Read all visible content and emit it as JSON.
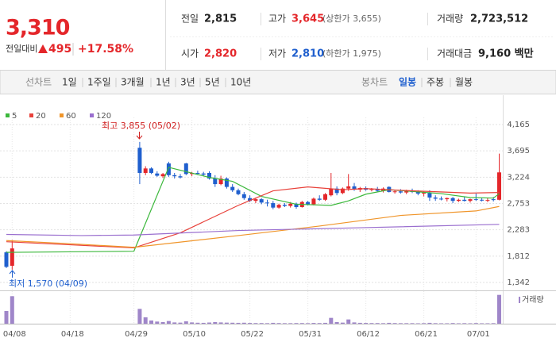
{
  "header": {
    "price": "3,310",
    "change_label": "전일대비",
    "change": "495",
    "change_pct": "+17.58%",
    "cells": [
      {
        "label": "전일",
        "value": "2,815"
      },
      {
        "label": "고가",
        "value": "3,645",
        "sub": "(상한가 3,655)"
      },
      {
        "label": "거래량",
        "value": "2,723,512"
      },
      {
        "label": "시가",
        "value": "2,820"
      },
      {
        "label": "저가",
        "value": "2,810",
        "sub": "(하한가 1,975)"
      },
      {
        "label": "거래대금",
        "value": "9,160 백만"
      }
    ]
  },
  "tabs": {
    "line_title": "선차트",
    "line": [
      "1일",
      "1주일",
      "3개월",
      "1년",
      "3년",
      "5년",
      "10년"
    ],
    "candle_title": "봉차트",
    "candle": [
      "일봉",
      "주봉",
      "월봉"
    ]
  },
  "chart_data": {
    "type": "candlestick",
    "up_color": "#e4262a",
    "down_color": "#1f5fce",
    "volume_color": "#9f86c9",
    "volume_label": "거래량",
    "volume_ylim": [
      0,
      3000000
    ],
    "ylim": [
      1342,
      4165
    ],
    "yticks": [
      {
        "value": 4165,
        "label": "4,165"
      },
      {
        "value": 3695,
        "label": "3,695"
      },
      {
        "value": 3224,
        "label": "3,224"
      },
      {
        "value": 2753,
        "label": "2,753"
      },
      {
        "value": 2283,
        "label": "2,283"
      },
      {
        "value": 1812,
        "label": "1,812"
      },
      {
        "value": 1342,
        "label": "1,342"
      }
    ],
    "categories": [
      null,
      "04/08",
      null,
      null,
      null,
      null,
      null,
      null,
      null,
      null,
      null,
      "04/18",
      null,
      null,
      null,
      null,
      null,
      null,
      null,
      null,
      null,
      null,
      "04/29",
      null,
      null,
      null,
      null,
      null,
      null,
      null,
      null,
      null,
      "05/10",
      null,
      null,
      null,
      null,
      null,
      null,
      null,
      null,
      null,
      "05/22",
      null,
      null,
      null,
      null,
      null,
      null,
      null,
      null,
      null,
      "05/31",
      null,
      null,
      null,
      null,
      null,
      null,
      null,
      null,
      null,
      "06/12",
      null,
      null,
      null,
      null,
      null,
      null,
      null,
      null,
      null,
      "06/21",
      null,
      null,
      null,
      null,
      null,
      null,
      null,
      null,
      "07/01",
      null,
      null,
      null,
      null
    ],
    "open": [
      1880,
      1640,
      null,
      null,
      null,
      null,
      null,
      null,
      null,
      null,
      null,
      null,
      null,
      null,
      null,
      null,
      null,
      null,
      null,
      null,
      null,
      null,
      null,
      3750,
      3300,
      3380,
      3290,
      3240,
      3470,
      3260,
      3240,
      3470,
      3280,
      3300,
      3290,
      3300,
      3200,
      3100,
      3200,
      3050,
      2990,
      2920,
      2850,
      2800,
      2830,
      2770,
      2760,
      2680,
      2730,
      2710,
      2750,
      2690,
      2780,
      2740,
      2840,
      2820,
      2900,
      3020,
      2940,
      3020,
      3060,
      3000,
      3030,
      3000,
      3010,
      2980,
      3050,
      2960,
      2970,
      2950,
      2980,
      2960,
      2930,
      2950,
      2860,
      2840,
      2830,
      2850,
      2800,
      2820,
      2800,
      2830,
      2820,
      2810,
      2830,
      2820
    ],
    "high": [
      1900,
      2100,
      null,
      null,
      null,
      null,
      null,
      null,
      null,
      null,
      null,
      null,
      null,
      null,
      null,
      null,
      null,
      null,
      null,
      null,
      null,
      null,
      null,
      3855,
      3420,
      3400,
      3330,
      3300,
      3500,
      3300,
      3280,
      3480,
      3320,
      3340,
      3320,
      3330,
      3260,
      3250,
      3220,
      3100,
      3020,
      2960,
      2900,
      2860,
      2850,
      2820,
      2800,
      2750,
      2760,
      2780,
      2770,
      2800,
      2800,
      2860,
      2900,
      2940,
      3300,
      3060,
      3040,
      3280,
      3120,
      3050,
      3060,
      3030,
      3050,
      3040,
      3060,
      3000,
      3010,
      3000,
      3020,
      2990,
      2980,
      2990,
      2900,
      2880,
      2860,
      2870,
      2840,
      2880,
      2840,
      2930,
      2850,
      2850,
      2870,
      3645
    ],
    "low": [
      1600,
      1570,
      null,
      null,
      null,
      null,
      null,
      null,
      null,
      null,
      null,
      null,
      null,
      null,
      null,
      null,
      null,
      null,
      null,
      null,
      null,
      null,
      null,
      3100,
      3260,
      3280,
      3230,
      3210,
      3230,
      3200,
      3200,
      3260,
      3240,
      3270,
      3250,
      3180,
      3050,
      3080,
      3020,
      2960,
      2900,
      2820,
      2780,
      2760,
      2740,
      2700,
      2650,
      2660,
      2690,
      2680,
      2660,
      2680,
      2720,
      2720,
      2800,
      2800,
      2880,
      2900,
      2920,
      2980,
      2980,
      2960,
      2980,
      2970,
      2960,
      2950,
      2950,
      2930,
      2930,
      2920,
      2940,
      2900,
      2880,
      2800,
      2800,
      2810,
      2790,
      2760,
      2780,
      2790,
      2770,
      2800,
      2790,
      2780,
      2790,
      2810
    ],
    "close": [
      1620,
      1950,
      null,
      null,
      null,
      null,
      null,
      null,
      null,
      null,
      null,
      null,
      null,
      null,
      null,
      null,
      null,
      null,
      null,
      null,
      null,
      null,
      null,
      3300,
      3380,
      3300,
      3250,
      3280,
      3260,
      3240,
      3220,
      3280,
      3300,
      3290,
      3270,
      3200,
      3100,
      3200,
      3050,
      2990,
      2920,
      2850,
      2800,
      2830,
      2770,
      2760,
      2680,
      2730,
      2710,
      2750,
      2690,
      2780,
      2740,
      2840,
      2820,
      2920,
      3020,
      2940,
      3020,
      3060,
      3000,
      3030,
      3000,
      3010,
      2980,
      3020,
      2960,
      2970,
      2950,
      2980,
      2960,
      2930,
      2950,
      2860,
      2840,
      2830,
      2850,
      2800,
      2820,
      2800,
      2830,
      2820,
      2810,
      2815,
      2815,
      3310
    ],
    "volume": [
      1200000,
      2600000,
      null,
      null,
      null,
      null,
      null,
      null,
      null,
      null,
      null,
      null,
      null,
      null,
      null,
      null,
      null,
      null,
      null,
      null,
      null,
      null,
      null,
      1400000,
      600000,
      300000,
      200000,
      150000,
      250000,
      120000,
      100000,
      220000,
      120000,
      90000,
      80000,
      110000,
      150000,
      120000,
      100000,
      90000,
      80000,
      90000,
      70000,
      60000,
      60000,
      50000,
      80000,
      60000,
      50000,
      50000,
      60000,
      60000,
      50000,
      70000,
      60000,
      80000,
      550000,
      150000,
      100000,
      400000,
      120000,
      80000,
      70000,
      60000,
      60000,
      50000,
      80000,
      60000,
      50000,
      50000,
      50000,
      40000,
      50000,
      80000,
      50000,
      40000,
      40000,
      60000,
      40000,
      50000,
      40000,
      60000,
      40000,
      40000,
      50000,
      2723512
    ],
    "moving_averages": [
      {
        "name": "5",
        "color": "#3cb83c",
        "x": [
          0,
          1,
          22,
          28,
          35,
          39,
          44,
          50,
          56,
          59,
          62,
          66,
          70,
          75,
          80,
          84,
          85
        ],
        "values": [
          1881,
          1880,
          1900,
          3400,
          3220,
          3150,
          2880,
          2740,
          2720,
          2800,
          2920,
          3000,
          2970,
          2930,
          2860,
          2850,
          2930
        ]
      },
      {
        "name": "20",
        "color": "#e8413a",
        "x": [
          0,
          10,
          22,
          30,
          40,
          46,
          52,
          58,
          62,
          70,
          80,
          85
        ],
        "values": [
          2070,
          2020,
          1960,
          2230,
          2720,
          2980,
          3050,
          3000,
          3020,
          2980,
          2940,
          2950
        ]
      },
      {
        "name": "60",
        "color": "#f0952a",
        "x": [
          0,
          10,
          22,
          40,
          54,
          68,
          81,
          85
        ],
        "values": [
          2090,
          2040,
          1970,
          2180,
          2350,
          2540,
          2620,
          2700
        ]
      },
      {
        "name": "120",
        "color": "#9a6fcf",
        "x": [
          0,
          13,
          22,
          40,
          61,
          85
        ],
        "values": [
          2200,
          2180,
          2190,
          2270,
          2320,
          2380
        ]
      }
    ],
    "annotations": [
      {
        "text": "최고 3,855 (05/02)"
      },
      {
        "text": "최저 1,570 (04/09)"
      }
    ]
  }
}
